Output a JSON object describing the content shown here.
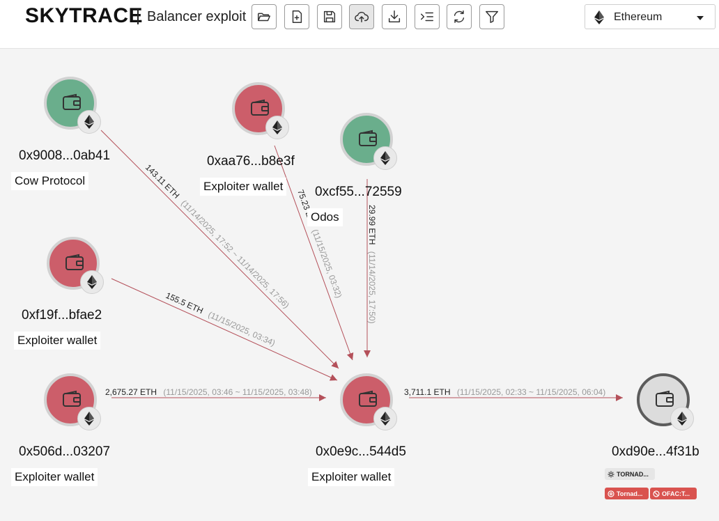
{
  "header": {
    "brand": "SKYTRACE",
    "case_title": "Balancer exploit",
    "toolbar": [
      {
        "name": "open-folder",
        "icon": "folder-open-icon"
      },
      {
        "name": "new-file",
        "icon": "file-plus-icon"
      },
      {
        "name": "save",
        "icon": "floppy-disk-icon"
      },
      {
        "name": "upload",
        "icon": "cloud-upload-icon"
      },
      {
        "name": "download",
        "icon": "download-icon"
      },
      {
        "name": "list-indent",
        "icon": "list-indent-icon"
      },
      {
        "name": "refresh",
        "icon": "refresh-icon"
      },
      {
        "name": "filter",
        "icon": "filter-icon"
      }
    ],
    "chain_select": {
      "value": "Ethereum",
      "icon": "ethereum-icon"
    }
  },
  "graph": {
    "colors": {
      "green": "#6aae8c",
      "red": "#cc5e6a",
      "gray": "#dcdcdc",
      "edge": "#b4505a"
    },
    "nodes": [
      {
        "id": "n1",
        "address": "0x9008...0ab41",
        "label": "Cow Protocol",
        "status": "green"
      },
      {
        "id": "n2",
        "address": "0xaa76...b8e3f",
        "label": "Exploiter wallet",
        "status": "red"
      },
      {
        "id": "n3",
        "address": "0xcf55...72559",
        "label": "Odos",
        "status": "green"
      },
      {
        "id": "n4",
        "address": "0xf19f...bfae2",
        "label": "Exploiter wallet",
        "status": "red"
      },
      {
        "id": "n5",
        "address": "0x506d...03207",
        "label": "Exploiter wallet",
        "status": "red"
      },
      {
        "id": "n6",
        "address": "0x0e9c...544d5",
        "label": "Exploiter wallet",
        "status": "red"
      },
      {
        "id": "n7",
        "address": "0xd90e...4f31b",
        "label": "",
        "status": "gray",
        "risk_tags": [
          {
            "text": "TORNAD...",
            "style": "grey",
            "icon": "settings-icon"
          },
          {
            "text": "Tornad...",
            "style": "red",
            "icon": "radar-icon"
          },
          {
            "text": "OFAC:T...",
            "style": "red",
            "icon": "ban-icon"
          }
        ]
      }
    ],
    "edges": [
      {
        "from": "n1",
        "to": "n6",
        "amount": "143.11 ETH",
        "time": "(11/14/2025, 17:52 ~ 11/14/2025, 17:56)"
      },
      {
        "from": "n2",
        "to": "n6",
        "amount": "75.23 E...",
        "time": "(11/15/2025, 03:32)"
      },
      {
        "from": "n3",
        "to": "n6",
        "amount": "29.99 ETH",
        "time": "(11/14/2025, 17:50)"
      },
      {
        "from": "n4",
        "to": "n6",
        "amount": "155.5 ETH",
        "time": "(11/15/2025, 03:34)"
      },
      {
        "from": "n5",
        "to": "n6",
        "amount": "2,675.27 ETH",
        "time": "(11/15/2025, 03:46 ~ 11/15/2025, 03:48)"
      },
      {
        "from": "n6",
        "to": "n7",
        "amount": "3,711.1 ETH",
        "time": "(11/15/2025, 02:33 ~ 11/15/2025, 06:04)"
      }
    ]
  }
}
